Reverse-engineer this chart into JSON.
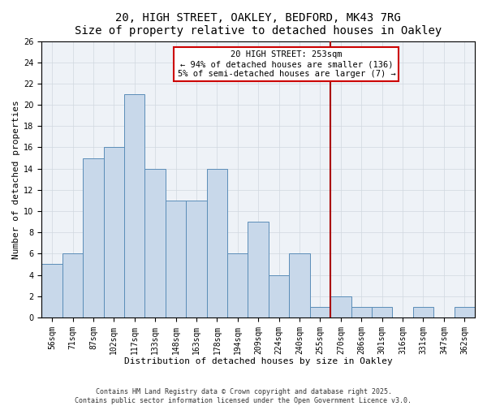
{
  "title": "20, HIGH STREET, OAKLEY, BEDFORD, MK43 7RG",
  "subtitle": "Size of property relative to detached houses in Oakley",
  "xlabel": "Distribution of detached houses by size in Oakley",
  "ylabel": "Number of detached properties",
  "bar_labels": [
    "56sqm",
    "71sqm",
    "87sqm",
    "102sqm",
    "117sqm",
    "133sqm",
    "148sqm",
    "163sqm",
    "178sqm",
    "194sqm",
    "209sqm",
    "224sqm",
    "240sqm",
    "255sqm",
    "270sqm",
    "286sqm",
    "301sqm",
    "316sqm",
    "331sqm",
    "347sqm",
    "362sqm"
  ],
  "bar_heights": [
    5,
    6,
    15,
    16,
    21,
    14,
    11,
    11,
    14,
    6,
    9,
    4,
    6,
    1,
    2,
    1,
    1,
    0,
    1,
    0,
    1
  ],
  "bar_color": "#c8d8ea",
  "bar_edgecolor": "#5b8db8",
  "ylim": [
    0,
    26
  ],
  "yticks": [
    0,
    2,
    4,
    6,
    8,
    10,
    12,
    14,
    16,
    18,
    20,
    22,
    24,
    26
  ],
  "vline_color": "#aa0000",
  "annotation_title": "20 HIGH STREET: 253sqm",
  "annotation_line1": "← 94% of detached houses are smaller (136)",
  "annotation_line2": "5% of semi-detached houses are larger (7) →",
  "footer_line1": "Contains HM Land Registry data © Crown copyright and database right 2025.",
  "footer_line2": "Contains public sector information licensed under the Open Government Licence v3.0.",
  "bg_color": "#eef2f7",
  "grid_color": "#d0d8e0",
  "title_fontsize": 10,
  "axis_label_fontsize": 8,
  "tick_fontsize": 7,
  "annotation_fontsize": 7.5,
  "footer_fontsize": 6
}
